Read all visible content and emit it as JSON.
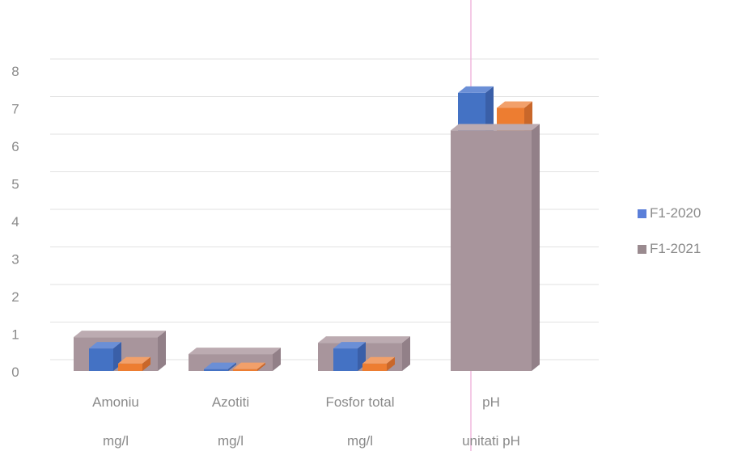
{
  "chart_data": {
    "type": "bar",
    "categories": [
      "Amoniu",
      "Azotiti",
      "Fosfor total",
      "pH"
    ],
    "units": [
      "mg/l",
      "mg/l",
      "mg/l",
      "unitati pH"
    ],
    "ylim": [
      0,
      8
    ],
    "yticks": [
      "0",
      "1",
      "2",
      "3",
      "4",
      "5",
      "6",
      "7",
      "8"
    ],
    "series": [
      {
        "name": "F1-2020",
        "values": [
          0.6,
          0.05,
          0.6,
          7.4
        ],
        "color": "#4472c4"
      },
      {
        "name": "F1-2021",
        "values": [
          0.2,
          0.05,
          0.2,
          7.0
        ],
        "color": "#ed7d31"
      }
    ],
    "overlay_values": [
      0.9,
      0.45,
      0.75,
      6.4
    ],
    "overlay_color": "#a8959c",
    "legend": [
      {
        "label": "F1-2020",
        "color": "#5b7fd9"
      },
      {
        "label": "F1-2021",
        "color": "#9a8a8f"
      }
    ],
    "grid": true,
    "legend_position": "right",
    "style": "3d-column"
  }
}
